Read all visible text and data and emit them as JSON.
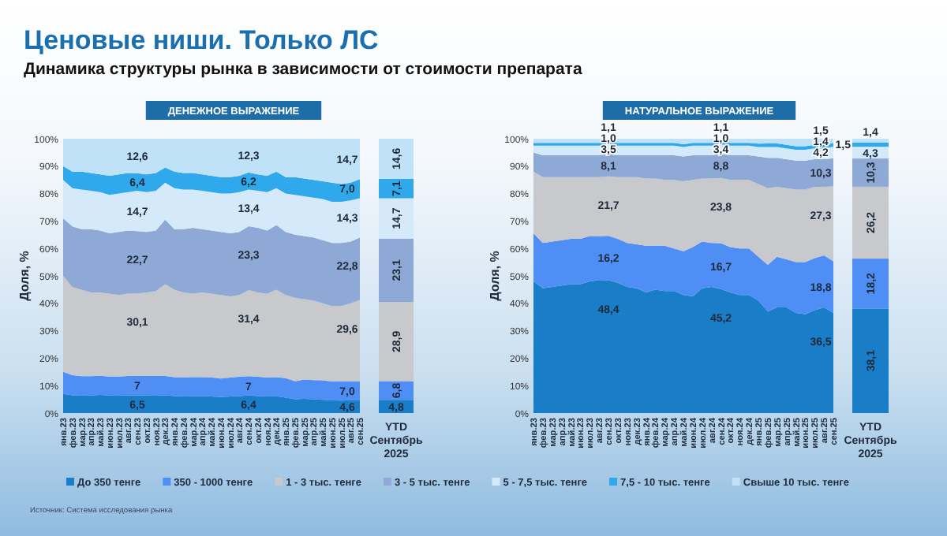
{
  "chart_data": [
    {
      "type": "area",
      "title": "ДЕНЕЖНОЕ ВЫРАЖЕНИЕ",
      "ylabel": "Доля, %",
      "stacked": true,
      "legend": "bottom",
      "categories": [
        "янв.23",
        "фев.23",
        "мар.23",
        "апр.23",
        "май.23",
        "июн.23",
        "июл.23",
        "авг.23",
        "сен.23",
        "окт.23",
        "ноя.23",
        "дек.23",
        "янв.24",
        "фев.24",
        "мар.24",
        "апр.24",
        "май.24",
        "июн.24",
        "июл.24",
        "авг.24",
        "сен.24",
        "окт.24",
        "ноя.24",
        "дек.24",
        "янв.25",
        "фев.25",
        "мар.25",
        "апр.25",
        "май.25",
        "июн.25",
        "июл.25",
        "авг.25",
        "сен.25"
      ],
      "ylim": [
        0,
        100
      ],
      "yticks": [
        {
          "value": 0,
          "label": "0%"
        },
        {
          "value": 10,
          "label": "10%"
        },
        {
          "value": 20,
          "label": "20%"
        },
        {
          "value": 30,
          "label": "30%"
        },
        {
          "value": 40,
          "label": "40%"
        },
        {
          "value": 50,
          "label": "50%"
        },
        {
          "value": 60,
          "label": "60%"
        },
        {
          "value": 70,
          "label": "70%"
        },
        {
          "value": 80,
          "label": "80%"
        },
        {
          "value": 90,
          "label": "90%"
        },
        {
          "value": 100,
          "label": "100%"
        }
      ],
      "series": [
        {
          "name": "До 350 тенге",
          "color": "#1a7dc8",
          "values": [
            7.0,
            6.5,
            6.3,
            6.4,
            6.6,
            6.4,
            6.3,
            6.5,
            6.5,
            6.4,
            6.3,
            6.5,
            6.2,
            6.0,
            6.1,
            6.2,
            6.0,
            5.8,
            6.0,
            6.2,
            6.4,
            6.2,
            6.0,
            6.1,
            5.6,
            5.0,
            5.2,
            5.0,
            4.8,
            4.6,
            4.5,
            4.7,
            4.6
          ],
          "value_labels": [
            null,
            null,
            null,
            null,
            null,
            null,
            null,
            null,
            "6,5",
            null,
            null,
            null,
            null,
            null,
            null,
            null,
            null,
            null,
            null,
            null,
            "6,4",
            null,
            null,
            null,
            null,
            null,
            null,
            null,
            null,
            null,
            null,
            null,
            "4,6"
          ]
        },
        {
          "name": "350 - 1000 тенге",
          "color": "#4f8ff5",
          "values": [
            8.0,
            7.3,
            7.1,
            7.0,
            7.0,
            6.9,
            7.0,
            7.0,
            7,
            7.1,
            7.2,
            7.0,
            6.9,
            7.0,
            7.0,
            6.9,
            7.0,
            6.8,
            6.9,
            7.0,
            7,
            7.0,
            6.9,
            7.0,
            7.1,
            6.6,
            7.0,
            7.0,
            7.1,
            6.9,
            7.0,
            6.9,
            7.0
          ],
          "value_labels": [
            null,
            null,
            null,
            null,
            null,
            null,
            null,
            null,
            "7",
            null,
            null,
            null,
            null,
            null,
            null,
            null,
            null,
            null,
            null,
            null,
            "7",
            null,
            null,
            null,
            null,
            null,
            null,
            null,
            null,
            null,
            null,
            null,
            "7,0"
          ]
        },
        {
          "name": "1 - 3 тыс. тенге",
          "color": "#c7c9cc",
          "values": [
            35.0,
            32.2,
            31.6,
            30.6,
            30.4,
            30.2,
            29.7,
            30.0,
            30.1,
            30.5,
            31.0,
            33.5,
            31.9,
            31.0,
            30.4,
            30.9,
            30.5,
            30.4,
            29.6,
            29.8,
            31.4,
            30.8,
            30.6,
            31.9,
            30.3,
            30.4,
            29.3,
            29.0,
            28.1,
            27.5,
            27.5,
            28.4,
            29.6
          ],
          "value_labels": [
            null,
            null,
            null,
            null,
            null,
            null,
            null,
            null,
            "30,1",
            null,
            null,
            null,
            null,
            null,
            null,
            null,
            null,
            null,
            null,
            null,
            "31,4",
            null,
            null,
            null,
            null,
            null,
            null,
            null,
            null,
            null,
            null,
            null,
            "29,6"
          ]
        },
        {
          "name": "3 - 5 тыс. тенге",
          "color": "#8fa9d6",
          "values": [
            21.0,
            22.0,
            22.0,
            23.0,
            22.5,
            22.0,
            23.0,
            23.0,
            22.7,
            22.0,
            22.0,
            23.5,
            22.0,
            23.0,
            24.0,
            23.0,
            23.0,
            23.0,
            23.0,
            23.0,
            23.3,
            23.5,
            23.0,
            23.5,
            23.0,
            23.0,
            23.0,
            23.0,
            23.0,
            23.0,
            23.0,
            22.5,
            22.8
          ],
          "value_labels": [
            null,
            null,
            null,
            null,
            null,
            null,
            null,
            null,
            "22,7",
            null,
            null,
            null,
            null,
            null,
            null,
            null,
            null,
            null,
            null,
            null,
            "23,3",
            null,
            null,
            null,
            null,
            null,
            null,
            null,
            null,
            null,
            null,
            null,
            "22,8"
          ]
        },
        {
          "name": "5 - 7,5 тыс. тенге",
          "color": "#d4eafb",
          "values": [
            14.0,
            14.0,
            14.5,
            14.0,
            14.0,
            14.0,
            14.0,
            14.0,
            14.7,
            14.5,
            14.5,
            13.5,
            15.0,
            14.5,
            14.0,
            14.0,
            14.0,
            14.0,
            14.5,
            14.5,
            13.4,
            13.5,
            14.0,
            13.5,
            14.0,
            14.5,
            14.5,
            14.5,
            15.0,
            15.0,
            15.0,
            15.0,
            14.3
          ],
          "value_labels": [
            null,
            null,
            null,
            null,
            null,
            null,
            null,
            null,
            "14,7",
            null,
            null,
            null,
            null,
            null,
            null,
            null,
            null,
            null,
            null,
            null,
            "13,4",
            null,
            null,
            null,
            null,
            null,
            null,
            null,
            null,
            null,
            null,
            null,
            "14,3"
          ]
        },
        {
          "name": "7,5 - 10 тыс. тенге",
          "color": "#2fa9ec",
          "values": [
            5.0,
            6.0,
            6.5,
            6.5,
            6.5,
            7.0,
            7.0,
            7.0,
            6.4,
            6.5,
            6.5,
            5.5,
            6.0,
            6.0,
            6.0,
            6.0,
            6.0,
            6.0,
            6.0,
            6.0,
            6.2,
            6.0,
            6.0,
            6.0,
            6.0,
            6.5,
            6.5,
            6.5,
            6.5,
            7.0,
            6.5,
            6.5,
            7.0
          ],
          "value_labels": [
            null,
            null,
            null,
            null,
            null,
            null,
            null,
            null,
            "6,4",
            null,
            null,
            null,
            null,
            null,
            null,
            null,
            null,
            null,
            null,
            null,
            "6,2",
            null,
            null,
            null,
            null,
            null,
            null,
            null,
            null,
            null,
            null,
            null,
            "7,0"
          ]
        },
        {
          "name": "Свыше 10 тыс. тенге",
          "color": "#c0e2f8",
          "values": [
            10.0,
            12.0,
            12.0,
            12.5,
            13.0,
            13.5,
            13.0,
            12.5,
            12.6,
            13.0,
            12.5,
            10.5,
            12.0,
            12.5,
            12.5,
            13.0,
            13.5,
            14.0,
            14.0,
            13.5,
            12.3,
            13.0,
            13.5,
            12.0,
            14.0,
            14.0,
            14.5,
            15.0,
            15.5,
            16.0,
            16.5,
            16.0,
            14.7
          ],
          "value_labels": [
            null,
            null,
            null,
            null,
            null,
            null,
            null,
            null,
            "12,6",
            null,
            null,
            null,
            null,
            null,
            null,
            null,
            null,
            null,
            null,
            null,
            "12,3",
            null,
            null,
            null,
            null,
            null,
            null,
            null,
            null,
            null,
            null,
            null,
            "14,7"
          ]
        }
      ]
    },
    {
      "type": "bar",
      "stacked": true,
      "tick_labels": "x",
      "categories": [
        "YTD Сентябрь 2025"
      ],
      "ylim": [
        0,
        100
      ],
      "series": [
        {
          "color": "#1a7dc8",
          "values": [
            4.8
          ],
          "value_labels": [
            "4,8"
          ]
        },
        {
          "color": "#4f8ff5",
          "values": [
            6.8
          ],
          "value_labels": [
            "6,8"
          ]
        },
        {
          "color": "#c7c9cc",
          "values": [
            28.9
          ],
          "value_labels": [
            "28,9"
          ]
        },
        {
          "color": "#8fa9d6",
          "values": [
            23.1
          ],
          "value_labels": [
            "23,1"
          ]
        },
        {
          "color": "#d4eafb",
          "values": [
            14.7
          ],
          "value_labels": [
            "14,7"
          ]
        },
        {
          "color": "#2fa9ec",
          "values": [
            7.1
          ],
          "value_labels": [
            "7,1"
          ]
        },
        {
          "color": "#c0e2f8",
          "values": [
            14.6
          ],
          "value_labels": [
            "14,6"
          ]
        }
      ]
    },
    {
      "type": "area",
      "title": "НАТУРАЛЬНОЕ ВЫРАЖЕНИЕ",
      "ylabel": "Доля, %",
      "stacked": true,
      "categories": [
        "янв.23",
        "фев.23",
        "мар.23",
        "апр.23",
        "май.23",
        "июн.23",
        "июл.23",
        "авг.23",
        "сен.23",
        "окт.23",
        "ноя.23",
        "дек.23",
        "янв.24",
        "фев.24",
        "мар.24",
        "апр.24",
        "май.24",
        "июн.24",
        "июл.24",
        "авг.24",
        "сен.24",
        "окт.24",
        "ноя.24",
        "дек.24",
        "янв.25",
        "фев.25",
        "мар.25",
        "апр.25",
        "май.25",
        "июн.25",
        "июл.25",
        "авг.25",
        "сен.25"
      ],
      "ylim": [
        0,
        100
      ],
      "yticks": [
        {
          "value": 0,
          "label": "0%"
        },
        {
          "value": 10,
          "label": "10%"
        },
        {
          "value": 20,
          "label": "20%"
        },
        {
          "value": 30,
          "label": "30%"
        },
        {
          "value": 40,
          "label": "40%"
        },
        {
          "value": 50,
          "label": "50%"
        },
        {
          "value": 60,
          "label": "60%"
        },
        {
          "value": 70,
          "label": "70%"
        },
        {
          "value": 80,
          "label": "80%"
        },
        {
          "value": 90,
          "label": "90%"
        },
        {
          "value": 100,
          "label": "100%"
        }
      ],
      "series": [
        {
          "color": "#1a7dc8",
          "values": [
            48,
            45.5,
            46,
            46.5,
            47,
            47,
            48,
            48.5,
            48.4,
            47.5,
            46,
            45.5,
            44,
            45,
            44.5,
            44.5,
            43,
            42.5,
            45.5,
            46,
            45.2,
            44,
            43,
            43,
            41,
            37,
            38.5,
            38.5,
            36.5,
            36,
            37.5,
            38.5,
            36.5
          ],
          "value_labels": [
            null,
            null,
            null,
            null,
            null,
            null,
            null,
            null,
            "48,4",
            null,
            null,
            null,
            null,
            null,
            null,
            null,
            null,
            null,
            null,
            null,
            "45,2",
            null,
            null,
            null,
            null,
            null,
            null,
            null,
            null,
            null,
            null,
            null,
            "36,5"
          ]
        },
        {
          "color": "#4f8ff5",
          "values": [
            17.5,
            16.5,
            16.5,
            16.5,
            16.5,
            16.5,
            16.5,
            16.0,
            16.2,
            16.0,
            16.0,
            16.0,
            17.0,
            16.0,
            16.5,
            15.5,
            16.0,
            18.0,
            17.0,
            16.0,
            16.7,
            16.5,
            17.0,
            17.0,
            16.0,
            17.0,
            18.5,
            17.5,
            18.5,
            19.0,
            19.0,
            19.0,
            18.8
          ],
          "value_labels": [
            null,
            null,
            null,
            null,
            null,
            null,
            null,
            null,
            "16,2",
            null,
            null,
            null,
            null,
            null,
            null,
            null,
            null,
            null,
            null,
            null,
            "16,7",
            null,
            null,
            null,
            null,
            null,
            null,
            null,
            null,
            null,
            null,
            null,
            "18,8"
          ]
        },
        {
          "color": "#c7c9cc",
          "values": [
            22.5,
            24.0,
            23.5,
            23.0,
            22.5,
            22.5,
            21.5,
            21.5,
            21.7,
            22.5,
            24.0,
            24.5,
            24.5,
            24.5,
            24.0,
            25.0,
            25.5,
            24.5,
            23.0,
            23.5,
            23.8,
            24.5,
            25.0,
            25.0,
            26.5,
            28.0,
            25.5,
            26.0,
            26.5,
            26.5,
            26.0,
            25.0,
            27.3
          ],
          "value_labels": [
            null,
            null,
            null,
            null,
            null,
            null,
            null,
            null,
            "21,7",
            null,
            null,
            null,
            null,
            null,
            null,
            null,
            null,
            null,
            null,
            null,
            "23,8",
            null,
            null,
            null,
            null,
            null,
            null,
            null,
            null,
            null,
            null,
            null,
            "27,3"
          ]
        },
        {
          "color": "#8fa9d6",
          "values": [
            7.0,
            8.0,
            8.0,
            8.0,
            8.0,
            8.0,
            8.0,
            8.0,
            8.1,
            8.0,
            8.0,
            8.0,
            8.5,
            8.5,
            9.0,
            9.0,
            9.0,
            9.0,
            8.5,
            8.5,
            8.8,
            9.0,
            9.0,
            9.0,
            10.0,
            11.0,
            10.5,
            10.5,
            10.5,
            10.5,
            10.0,
            10.0,
            10.3
          ],
          "value_labels": [
            null,
            null,
            null,
            null,
            null,
            null,
            null,
            null,
            "8,1",
            null,
            null,
            null,
            null,
            null,
            null,
            null,
            null,
            null,
            null,
            null,
            "8,8",
            null,
            null,
            null,
            null,
            null,
            null,
            null,
            null,
            null,
            null,
            null,
            "10,3"
          ]
        },
        {
          "color": "#d4eafb",
          "values": [
            2.5,
            3.5,
            3.5,
            3.5,
            3.5,
            3.5,
            3.5,
            3.5,
            3.5,
            3.5,
            3.5,
            3.5,
            3.5,
            3.5,
            3.5,
            3.5,
            3.5,
            3.5,
            3.5,
            3.5,
            3.4,
            3.5,
            3.5,
            3.5,
            3.5,
            4.0,
            4.0,
            4.0,
            4.0,
            4.0,
            4.0,
            4.0,
            4.2
          ],
          "value_labels": [
            null,
            null,
            null,
            null,
            null,
            null,
            null,
            null,
            "3,5",
            null,
            null,
            null,
            null,
            null,
            null,
            null,
            null,
            null,
            null,
            null,
            "3,4",
            null,
            null,
            null,
            null,
            null,
            null,
            null,
            null,
            null,
            null,
            null,
            "4,2"
          ]
        },
        {
          "color": "#2fa9ec",
          "values": [
            1.0,
            1.0,
            1.0,
            1.0,
            1.0,
            1.0,
            1.0,
            1.0,
            1.0,
            1.0,
            1.0,
            1.0,
            1.0,
            1.0,
            1.0,
            1.0,
            1.0,
            1.0,
            1.0,
            1.0,
            1.0,
            1.0,
            1.0,
            1.0,
            1.2,
            1.3,
            1.3,
            1.3,
            1.3,
            1.3,
            1.3,
            1.3,
            1.4
          ],
          "value_labels": [
            null,
            null,
            null,
            null,
            null,
            null,
            null,
            null,
            "1,0",
            null,
            null,
            null,
            null,
            null,
            null,
            null,
            null,
            null,
            null,
            null,
            "1,0",
            null,
            null,
            null,
            null,
            null,
            null,
            null,
            null,
            null,
            null,
            null,
            "1,4"
          ]
        },
        {
          "color": "#c0e2f8",
          "values": [
            1.5,
            1.5,
            1.5,
            1.5,
            1.5,
            1.5,
            1.5,
            1.5,
            1.1,
            1.5,
            1.5,
            1.5,
            1.5,
            1.5,
            1.5,
            1.5,
            2.0,
            1.5,
            1.5,
            1.5,
            1.1,
            1.5,
            1.5,
            1.5,
            1.8,
            1.7,
            1.7,
            2.2,
            2.7,
            2.7,
            2.2,
            2.2,
            1.5
          ],
          "value_labels": [
            null,
            null,
            null,
            null,
            null,
            null,
            null,
            null,
            "1,1",
            null,
            null,
            null,
            null,
            null,
            null,
            null,
            null,
            null,
            null,
            null,
            "1,1",
            null,
            null,
            null,
            null,
            null,
            null,
            null,
            null,
            null,
            null,
            null,
            "1,5"
          ]
        }
      ]
    },
    {
      "type": "bar",
      "stacked": true,
      "tick_labels": "x",
      "categories": [
        "YTD Сентябрь 2025"
      ],
      "ylim": [
        0,
        100
      ],
      "series": [
        {
          "color": "#1a7dc8",
          "values": [
            38.1
          ],
          "value_labels": [
            "38,1"
          ]
        },
        {
          "color": "#4f8ff5",
          "values": [
            18.2
          ],
          "value_labels": [
            "18,2"
          ]
        },
        {
          "color": "#c7c9cc",
          "values": [
            26.2
          ],
          "value_labels": [
            "26,2"
          ]
        },
        {
          "color": "#8fa9d6",
          "values": [
            10.3
          ],
          "value_labels": [
            "10,3"
          ]
        },
        {
          "color": "#d4eafb",
          "values": [
            4.3
          ],
          "value_labels": [
            "4,3"
          ]
        },
        {
          "color": "#2fa9ec",
          "values": [
            1.5
          ],
          "value_labels": [
            "1,5"
          ]
        },
        {
          "color": "#c0e2f8",
          "values": [
            1.4
          ],
          "value_labels": [
            "1,4"
          ]
        }
      ]
    },
    {
      "type": "other",
      "title": "Ценовые ниши. Только ЛС",
      "subtitle": "Динамика структуры рынка в зависимости от стоимости препарата",
      "annotations": [
        "Источник: Система исследования рынка"
      ]
    }
  ]
}
